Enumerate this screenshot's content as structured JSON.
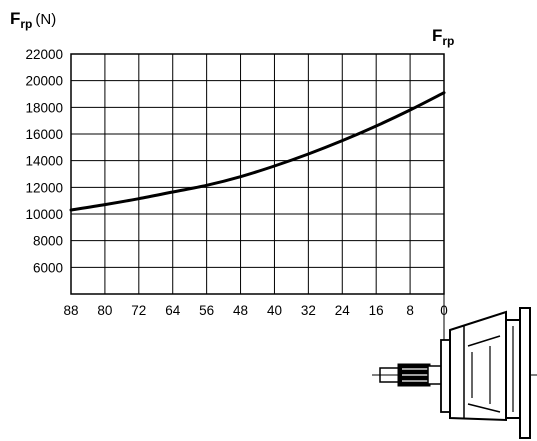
{
  "chart_data": {
    "type": "line",
    "ylabel": {
      "symbol": "F",
      "subscript": "rp",
      "unit": "(N)"
    },
    "xlabel": "",
    "right_label": {
      "symbol": "F",
      "subscript": "rp"
    },
    "x_ticks": [
      88,
      80,
      72,
      64,
      56,
      48,
      40,
      32,
      24,
      16,
      8,
      0
    ],
    "y_ticks": [
      6000,
      8000,
      10000,
      12000,
      14000,
      16000,
      18000,
      20000,
      22000
    ],
    "xlim": [
      88,
      0
    ],
    "ylim": [
      4000,
      22000
    ],
    "x_reversed": true,
    "grid": true,
    "series": [
      {
        "x": [
          88,
          80,
          72,
          64,
          56,
          48,
          40,
          32,
          24,
          16,
          8,
          0
        ],
        "y": [
          10300,
          10700,
          11150,
          11650,
          12150,
          12800,
          13600,
          14500,
          15500,
          16600,
          17800,
          19100
        ]
      }
    ],
    "line_color": "#000000"
  }
}
